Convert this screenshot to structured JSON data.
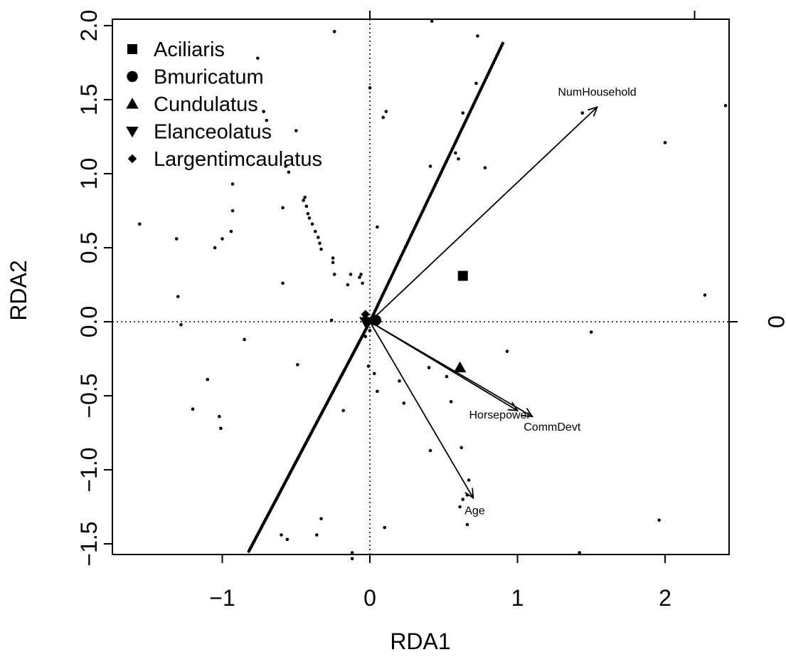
{
  "chart_data": {
    "type": "scatter",
    "subtype": "RDA triplot",
    "xlabel": "RDA1",
    "ylabel": "RDA2",
    "xlim": [
      -1.75,
      2.45
    ],
    "ylim": [
      -1.6,
      2.05
    ],
    "x_ticks": [
      "−1",
      "0",
      "1",
      "2"
    ],
    "x_tick_values": [
      -1,
      0,
      1,
      2
    ],
    "y_ticks": [
      "−1.5",
      "−1.0",
      "−0.5",
      "0.0",
      "0.5",
      "1.0",
      "1.5",
      "2.0"
    ],
    "y_tick_values": [
      -1.5,
      -1.0,
      -0.5,
      0.0,
      0.5,
      1.0,
      1.5,
      2.0
    ],
    "top_ticks": [
      0,
      2.2
    ],
    "right_tick_label": "0",
    "reference_lines": {
      "x": 0,
      "y": 0,
      "style": "dotted"
    },
    "legend": {
      "position": "top-left",
      "entries": [
        {
          "name": "Aciliaris",
          "symbol": "square"
        },
        {
          "name": "Bmuricatum",
          "symbol": "circle"
        },
        {
          "name": "Cundulatus",
          "symbol": "triangle-up"
        },
        {
          "name": "Elanceolatus",
          "symbol": "triangle-down"
        },
        {
          "name": "Largentimcaulatus",
          "symbol": "diamond"
        }
      ]
    },
    "species": [
      {
        "name": "Aciliaris",
        "symbol": "square",
        "x": 0.63,
        "y": 0.31
      },
      {
        "name": "Bmuricatum",
        "symbol": "circle",
        "x": 0.04,
        "y": 0.01
      },
      {
        "name": "Cundulatus",
        "symbol": "triangle-up",
        "x": 0.61,
        "y": -0.31
      },
      {
        "name": "Elanceolatus",
        "symbol": "triangle-down",
        "x": -0.03,
        "y": 0.0
      },
      {
        "name": "Largentimcaulatus",
        "symbol": "diamond",
        "x": -0.03,
        "y": 0.05
      }
    ],
    "biplot_arrows": [
      {
        "label": "NumHousehold",
        "x": 1.54,
        "y": 1.45
      },
      {
        "label": "Horsepower",
        "x": 1.0,
        "y": -0.6
      },
      {
        "label": "CommDevt",
        "x": 1.1,
        "y": -0.64
      },
      {
        "label": "Age",
        "x": 0.7,
        "y": -1.19
      }
    ],
    "line_site_segments": [
      {
        "from": [
          -0.82,
          -1.55
        ],
        "to": [
          0.0,
          0.0
        ],
        "count": 130
      },
      {
        "from": [
          0.0,
          0.0
        ],
        "to": [
          0.9,
          1.88
        ],
        "count": 130
      }
    ],
    "sites": [
      [
        -1.56,
        0.66
      ],
      [
        -1.31,
        0.56
      ],
      [
        -1.3,
        0.17
      ],
      [
        -1.28,
        -0.02
      ],
      [
        -1.1,
        -0.39
      ],
      [
        -1.05,
        0.5
      ],
      [
        -1.2,
        -0.59
      ],
      [
        -1.02,
        -0.64
      ],
      [
        -1.01,
        -0.72
      ],
      [
        -1.0,
        0.56
      ],
      [
        -0.94,
        0.61
      ],
      [
        -0.93,
        0.75
      ],
      [
        -0.93,
        0.93
      ],
      [
        -0.85,
        -0.12
      ],
      [
        -0.76,
        1.78
      ],
      [
        -0.72,
        1.42
      ],
      [
        -0.7,
        1.36
      ],
      [
        -0.6,
        -1.44
      ],
      [
        -0.56,
        -1.47
      ],
      [
        -0.59,
        0.26
      ],
      [
        -0.59,
        0.77
      ],
      [
        -0.57,
        1.05
      ],
      [
        -0.55,
        1.01
      ],
      [
        -0.5,
        1.29
      ],
      [
        -0.49,
        -0.29
      ],
      [
        -0.45,
        0.82
      ],
      [
        -0.44,
        0.84
      ],
      [
        -0.43,
        0.78
      ],
      [
        -0.42,
        0.73
      ],
      [
        -0.41,
        0.7
      ],
      [
        -0.39,
        0.66
      ],
      [
        -0.37,
        0.61
      ],
      [
        -0.35,
        0.57
      ],
      [
        -0.34,
        0.53
      ],
      [
        -0.33,
        0.49
      ],
      [
        -0.33,
        -1.33
      ],
      [
        -0.36,
        -1.44
      ],
      [
        -0.26,
        0.01
      ],
      [
        -0.25,
        0.43
      ],
      [
        -0.25,
        0.4
      ],
      [
        -0.24,
        0.32
      ],
      [
        -0.24,
        1.96
      ],
      [
        -0.18,
        -0.6
      ],
      [
        -0.15,
        0.25
      ],
      [
        -0.13,
        0.32
      ],
      [
        -0.12,
        -1.56
      ],
      [
        -0.12,
        -1.6
      ],
      [
        -0.07,
        0.3
      ],
      [
        -0.06,
        0.32
      ],
      [
        -0.05,
        0.26
      ],
      [
        -0.03,
        -0.1
      ],
      [
        -0.02,
        -0.02
      ],
      [
        -0.01,
        -0.3
      ],
      [
        0.0,
        1.58
      ],
      [
        0.0,
        -0.06
      ],
      [
        0.03,
        -0.35
      ],
      [
        0.05,
        0.64
      ],
      [
        0.05,
        -0.47
      ],
      [
        0.09,
        1.38
      ],
      [
        0.11,
        1.42
      ],
      [
        0.1,
        -1.39
      ],
      [
        0.2,
        -0.4
      ],
      [
        0.23,
        -0.55
      ],
      [
        0.4,
        -0.31
      ],
      [
        0.42,
        2.03
      ],
      [
        0.41,
        -0.87
      ],
      [
        0.41,
        1.05
      ],
      [
        0.52,
        -0.37
      ],
      [
        0.55,
        -0.54
      ],
      [
        0.58,
        1.14
      ],
      [
        0.6,
        1.1
      ],
      [
        0.61,
        -1.25
      ],
      [
        0.63,
        -1.2
      ],
      [
        0.62,
        -0.85
      ],
      [
        0.63,
        1.41
      ],
      [
        0.66,
        -1.17
      ],
      [
        0.66,
        -1.37
      ],
      [
        0.67,
        -1.07
      ],
      [
        0.72,
        1.61
      ],
      [
        0.73,
        1.93
      ],
      [
        0.78,
        1.04
      ],
      [
        0.93,
        -0.2
      ],
      [
        1.44,
        1.41
      ],
      [
        1.5,
        -0.07
      ],
      [
        1.42,
        -1.56
      ],
      [
        1.96,
        -1.34
      ],
      [
        2.0,
        1.21
      ],
      [
        2.27,
        0.18
      ],
      [
        2.41,
        1.46
      ]
    ]
  }
}
